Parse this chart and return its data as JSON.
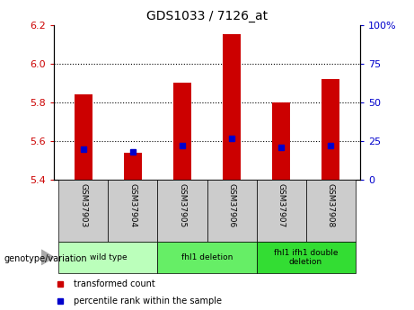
{
  "title": "GDS1033 / 7126_at",
  "samples": [
    "GSM37903",
    "GSM37904",
    "GSM37905",
    "GSM37906",
    "GSM37907",
    "GSM37908"
  ],
  "transformed_count": [
    5.84,
    5.54,
    5.9,
    6.15,
    5.8,
    5.92
  ],
  "percentile_rank": [
    20,
    18,
    22,
    27,
    21,
    22
  ],
  "ylim_left": [
    5.4,
    6.2
  ],
  "ylim_right": [
    0,
    100
  ],
  "yticks_left": [
    5.4,
    5.6,
    5.8,
    6.0,
    6.2
  ],
  "yticks_right": [
    0,
    25,
    50,
    75,
    100
  ],
  "bar_color": "#cc0000",
  "dot_color": "#0000cc",
  "groups": [
    {
      "label": "wild type",
      "indices": [
        0,
        1
      ],
      "color": "#bbffbb"
    },
    {
      "label": "fhl1 deletion",
      "indices": [
        2,
        3
      ],
      "color": "#66ee66"
    },
    {
      "label": "fhl1 ifh1 double\ndeletion",
      "indices": [
        4,
        5
      ],
      "color": "#33dd33"
    }
  ],
  "legend_items": [
    {
      "color": "#cc0000",
      "label": "transformed count"
    },
    {
      "color": "#0000cc",
      "label": "percentile rank within the sample"
    }
  ],
  "bar_width": 0.35,
  "base_value": 5.4,
  "genotype_label": "genotype/variation",
  "tick_label_color_left": "#cc0000",
  "tick_label_color_right": "#0000cc",
  "sample_cell_color": "#cccccc",
  "title_fontsize": 10,
  "tick_fontsize": 8,
  "label_fontsize": 7
}
